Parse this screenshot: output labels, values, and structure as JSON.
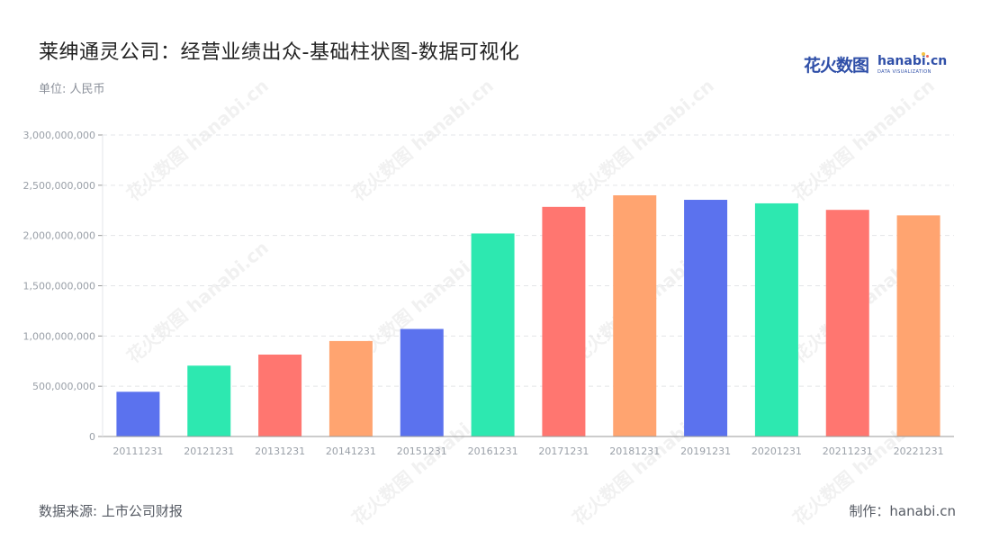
{
  "title": "莱绅通灵公司：经营业绩出众-基础柱状图-数据可视化",
  "unit": "单位: 人民币",
  "logo": {
    "cn": "花火数图",
    "en": "hanabi.cn",
    "sub": "DATA VISUALIZATION"
  },
  "footer": {
    "source": "数据来源: 上市公司财报",
    "maker": "制作：hanabi.cn"
  },
  "watermark": "花火数图 hanabi.cn",
  "colors": {
    "palette": [
      "#5b72ee",
      "#2de8b0",
      "#ff7670",
      "#ffa470"
    ],
    "grid": "#e3e5e8",
    "axis": "#999999",
    "tick": "#9aa0a8"
  },
  "chart_data": {
    "type": "bar",
    "categories": [
      "20111231",
      "20121231",
      "20131231",
      "20141231",
      "20151231",
      "20161231",
      "20171231",
      "20181231",
      "20191231",
      "20201231",
      "20211231",
      "20221231"
    ],
    "values": [
      445000000,
      705000000,
      815000000,
      950000000,
      1070000000,
      2020000000,
      2285000000,
      2400000000,
      2355000000,
      2320000000,
      2255000000,
      2200000000
    ],
    "yticks": [
      "0",
      "500,000,000",
      "1,000,000,000",
      "1,500,000,000",
      "2,000,000,000",
      "2,500,000,000",
      "3,000,000,000"
    ],
    "ylim": [
      0,
      3000000000
    ],
    "grid": true,
    "legend": "none"
  }
}
